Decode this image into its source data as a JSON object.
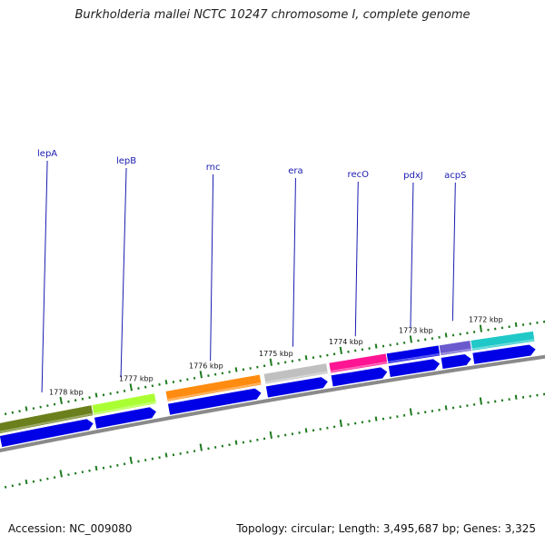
{
  "title": "Burkholderia mallei NCTC 10247 chromosome I, complete genome",
  "footer": {
    "accession": "Accession: NC_009080",
    "summary": "Topology: circular; Length: 3,495,687 bp; Genes: 3,325"
  },
  "colors": {
    "backbone": "#8a8a8a",
    "tick": "#1e7a1e",
    "cds": "#0000e6",
    "label": "#1a1ab0"
  },
  "position_labels": [
    {
      "text": "1778 kbp",
      "kbp": 1778
    },
    {
      "text": "1777 kbp",
      "kbp": 1777
    },
    {
      "text": "1776 kbp",
      "kbp": 1776
    },
    {
      "text": "1775 kbp",
      "kbp": 1775
    },
    {
      "text": "1774 kbp",
      "kbp": 1774
    },
    {
      "text": "1773 kbp",
      "kbp": 1773
    },
    {
      "text": "1772 kbp",
      "kbp": 1772
    }
  ],
  "genes": [
    {
      "name": "lepA",
      "start_kbp": 1778.85,
      "end_kbp": 1777.5,
      "color": "#6b7f1c"
    },
    {
      "name": "lepB",
      "start_kbp": 1777.5,
      "end_kbp": 1776.6,
      "color": "#aaff33"
    },
    {
      "name": "rnc",
      "start_kbp": 1776.45,
      "end_kbp": 1775.1,
      "color": "#ff8c10"
    },
    {
      "name": "era",
      "start_kbp": 1775.05,
      "end_kbp": 1774.15,
      "color": "#c0c0c0"
    },
    {
      "name": "recO",
      "start_kbp": 1774.12,
      "end_kbp": 1773.3,
      "color": "#ff1493"
    },
    {
      "name": "pdxJ",
      "start_kbp": 1773.3,
      "end_kbp": 1772.55,
      "color": "#0000e6"
    },
    {
      "name": "acpS",
      "start_kbp": 1772.55,
      "end_kbp": 1772.1,
      "color": "#6a5acd"
    },
    {
      "name": "",
      "start_kbp": 1772.1,
      "end_kbp": 1771.2,
      "color": "#20c8c8"
    }
  ],
  "cds_arrows": [
    {
      "start_kbp": 1778.85,
      "end_kbp": 1777.52
    },
    {
      "start_kbp": 1777.5,
      "end_kbp": 1776.62
    },
    {
      "start_kbp": 1776.45,
      "end_kbp": 1775.12
    },
    {
      "start_kbp": 1775.05,
      "end_kbp": 1774.17
    },
    {
      "start_kbp": 1774.12,
      "end_kbp": 1773.32
    },
    {
      "start_kbp": 1773.3,
      "end_kbp": 1772.57
    },
    {
      "start_kbp": 1772.55,
      "end_kbp": 1772.12
    },
    {
      "start_kbp": 1772.1,
      "end_kbp": 1771.2
    }
  ]
}
